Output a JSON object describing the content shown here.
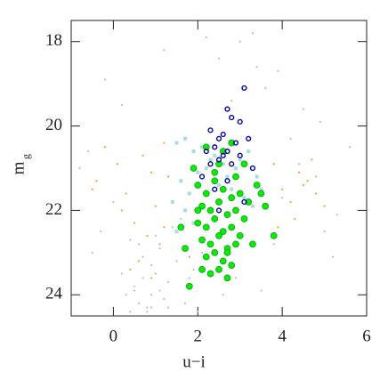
{
  "chart_data": {
    "type": "scatter",
    "xlabel": "u−i",
    "ylabel": "m",
    "ylabel_subscript": "g",
    "xlim": [
      -1,
      6
    ],
    "ylim": [
      24.5,
      17.5
    ],
    "xticks": [
      0,
      2,
      4,
      6
    ],
    "yticks": [
      18,
      20,
      22,
      24
    ],
    "series": [
      {
        "color": "#bdbdbd",
        "marker": "dot",
        "x": [
          0.5,
          0.7,
          0.9,
          1.1,
          0.6,
          0.8,
          1.0,
          1.2,
          0.4,
          0.9,
          1.3,
          0.7,
          0.5,
          1.1,
          0.8,
          0.3,
          1.5,
          0.6,
          1.0,
          0.2,
          1.4,
          0.9,
          1.8,
          2.1,
          1.6,
          0.0,
          -0.3,
          -0.6,
          2.5,
          3.0,
          3.6,
          4.2,
          4.8,
          5.3,
          5.6,
          4.5,
          3.9,
          3.3,
          2.8,
          1.9,
          -0.5,
          -0.8,
          0.2,
          1.2,
          2.2,
          3.4,
          4.0,
          4.9,
          5.2,
          2.6,
          1.7,
          0.4,
          -0.2,
          3.8,
          4.4,
          5.0,
          1.3,
          2.0,
          2.9,
          3.5
        ],
        "y": [
          23.8,
          23.6,
          24.0,
          23.9,
          24.2,
          24.3,
          23.5,
          24.1,
          24.4,
          23.3,
          23.7,
          23.1,
          23.9,
          22.9,
          24.4,
          24.0,
          23.2,
          22.8,
          22.6,
          23.5,
          22.4,
          24.3,
          23.6,
          23.0,
          22.2,
          21.8,
          22.5,
          20.6,
          18.4,
          18.0,
          19.1,
          20.3,
          21.2,
          22.1,
          20.5,
          19.6,
          18.7,
          17.8,
          19.4,
          23.4,
          23.0,
          21.0,
          19.5,
          18.2,
          17.9,
          18.6,
          21.7,
          19.9,
          23.1,
          24.0,
          24.2,
          22.7,
          18.9,
          22.8,
          20.9,
          22.5,
          24.3,
          24.4,
          23.6,
          23.9
        ]
      },
      {
        "color": "#f0a030",
        "marker": "dot",
        "x": [
          -0.4,
          -0.2,
          0.1,
          0.3,
          0.5,
          0.7,
          0.9,
          1.1,
          1.2,
          0.6,
          0.2,
          -0.5,
          0.8,
          1.0,
          0.4,
          1.3,
          1.2,
          0.9,
          3.8,
          4.0,
          4.2,
          4.4,
          4.6,
          4.8,
          5.0,
          4.3,
          4.7,
          3.9,
          4.5,
          1.8
        ],
        "y": [
          21.3,
          20.5,
          20.9,
          21.6,
          22.3,
          20.7,
          21.1,
          22.8,
          20.4,
          23.2,
          22.0,
          21.5,
          22.6,
          21.9,
          23.4,
          21.2,
          22.4,
          23.6,
          20.9,
          21.5,
          21.8,
          21.1,
          21.3,
          21.6,
          21.9,
          22.2,
          20.8,
          22.4,
          21.4,
          23.1
        ]
      },
      {
        "color": "#a8dde0",
        "marker": "square",
        "x": [
          1.5,
          1.7,
          1.9,
          2.1,
          2.3,
          2.6,
          2.9,
          3.2,
          3.4,
          1.6,
          1.8,
          2.0,
          2.5,
          2.8,
          3.1,
          3.3,
          1.4,
          1.7,
          2.2,
          2.7,
          3.0,
          3.5,
          1.9,
          1.5,
          2.4
        ],
        "y": [
          20.4,
          20.3,
          20.6,
          20.5,
          20.8,
          20.9,
          21.0,
          20.6,
          21.2,
          21.3,
          21.6,
          21.1,
          21.4,
          21.5,
          21.7,
          21.9,
          21.8,
          22.0,
          21.0,
          21.2,
          20.8,
          21.5,
          22.3,
          22.5,
          20.7
        ]
      },
      {
        "color": "#00ee00",
        "marker": "circle",
        "x": [
          2.0,
          2.2,
          2.4,
          2.6,
          2.8,
          3.0,
          3.2,
          2.1,
          2.3,
          2.5,
          2.7,
          2.9,
          3.1,
          2.0,
          2.2,
          2.4,
          2.6,
          2.8,
          3.0,
          2.1,
          2.3,
          2.5,
          2.7,
          2.9,
          2.2,
          2.4,
          2.6,
          2.8,
          2.3,
          2.5,
          2.7,
          1.7,
          1.6,
          2.0,
          3.4,
          3.6,
          3.8,
          3.3,
          2.9,
          2.5,
          2.2,
          2.6,
          1.9,
          3.1,
          2.4,
          2.8,
          3.5,
          1.8,
          2.1,
          2.7
        ],
        "y": [
          21.4,
          21.6,
          21.3,
          21.5,
          21.7,
          21.6,
          21.8,
          21.9,
          22.0,
          21.8,
          22.1,
          22.0,
          22.2,
          22.3,
          22.4,
          22.2,
          22.5,
          22.4,
          22.6,
          22.7,
          22.8,
          22.6,
          22.9,
          22.8,
          23.1,
          23.0,
          23.2,
          23.3,
          23.5,
          23.4,
          23.6,
          22.9,
          22.4,
          22.0,
          21.4,
          21.9,
          22.6,
          22.8,
          21.2,
          20.9,
          20.5,
          20.6,
          21.0,
          20.9,
          21.1,
          20.4,
          21.6,
          23.8,
          23.4,
          23.0
        ]
      },
      {
        "color": "#0000aa",
        "marker": "open-circle",
        "x": [
          3.1,
          2.7,
          2.8,
          3.0,
          2.3,
          2.6,
          2.5,
          3.2,
          2.9,
          2.4,
          2.7,
          2.2,
          2.6,
          3.0,
          2.5,
          2.3,
          2.8,
          3.3,
          2.1,
          2.7,
          2.4,
          3.1,
          2.5
        ],
        "y": [
          19.1,
          19.6,
          19.8,
          19.9,
          20.1,
          20.2,
          20.3,
          20.3,
          20.4,
          20.5,
          20.6,
          20.6,
          20.7,
          20.7,
          20.8,
          20.9,
          20.9,
          21.0,
          21.2,
          21.3,
          21.5,
          21.8,
          22.0
        ]
      }
    ]
  }
}
